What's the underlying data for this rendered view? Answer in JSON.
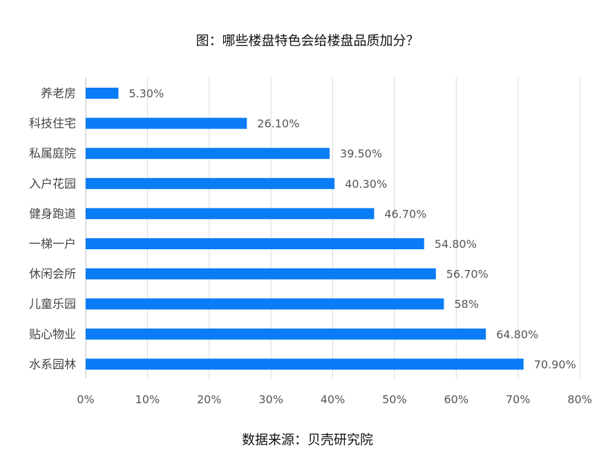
{
  "chart_data": {
    "type": "bar",
    "orientation": "horizontal",
    "title": "图：哪些楼盘特色会给楼盘品质加分？",
    "source": "数据来源：贝壳研究院",
    "categories": [
      "养老房",
      "科技住宅",
      "私属庭院",
      "入户花园",
      "健身跑道",
      "一梯一户",
      "休闲会所",
      "儿童乐园",
      "贴心物业",
      "水系园林"
    ],
    "values": [
      5.3,
      26.1,
      39.5,
      40.3,
      46.7,
      54.8,
      56.7,
      58,
      64.8,
      70.9
    ],
    "value_labels": [
      "5.30%",
      "26.10%",
      "39.50%",
      "40.30%",
      "46.70%",
      "54.80%",
      "56.70%",
      "58%",
      "64.80%",
      "70.90%"
    ],
    "x_ticks": [
      "0%",
      "10%",
      "20%",
      "30%",
      "40%",
      "50%",
      "60%",
      "70%",
      "80%"
    ],
    "xlim": [
      0,
      80
    ],
    "grid": true,
    "bar_color": "#0a7cf6"
  }
}
